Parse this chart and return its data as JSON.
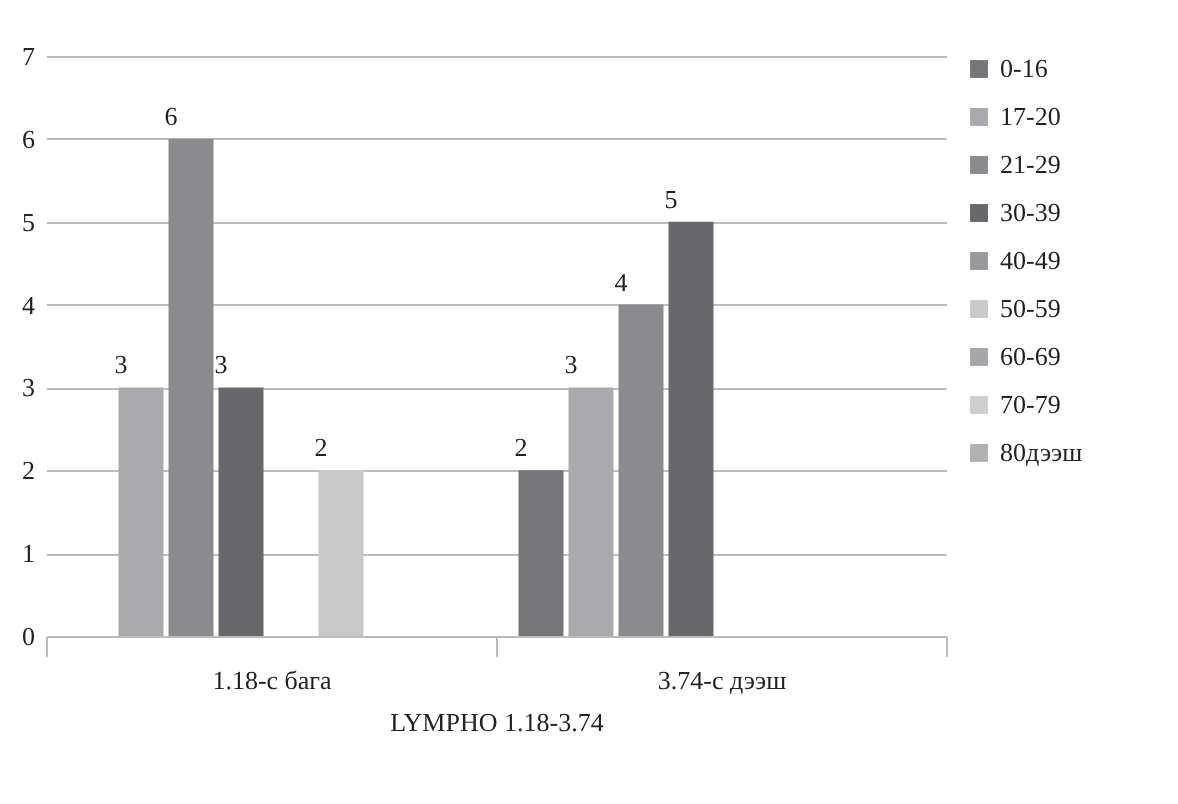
{
  "chart_data": {
    "type": "bar",
    "xlabel": "LYMPHO 1.18-3.74",
    "categories": [
      "1.18-с бага",
      "3.74-с дээш"
    ],
    "series": [
      {
        "name": "0-16",
        "color": "#75767a",
        "values": [
          null,
          2
        ]
      },
      {
        "name": "17-20",
        "color": "#a9aaad",
        "values": [
          3,
          3
        ]
      },
      {
        "name": "21-29",
        "color": "#8a8b8f",
        "values": [
          6,
          4
        ]
      },
      {
        "name": "30-39",
        "color": "#67686b",
        "values": [
          3,
          5
        ]
      },
      {
        "name": "40-49",
        "color": "#98999c",
        "values": [
          null,
          null
        ]
      },
      {
        "name": "50-59",
        "color": "#c8c9cb",
        "values": [
          2,
          null
        ]
      },
      {
        "name": "60-69",
        "color": "#a5a6a9",
        "values": [
          null,
          null
        ]
      },
      {
        "name": "70-79",
        "color": "#cdced0",
        "values": [
          null,
          null
        ]
      },
      {
        "name": "80дээш",
        "color": "#b0b1b3",
        "values": [
          null,
          null
        ]
      }
    ],
    "ylim": [
      0,
      7
    ],
    "yticks": [
      0,
      1,
      2,
      3,
      4,
      5,
      6,
      7
    ],
    "grid": "y",
    "legend": "right",
    "data_labels": true
  }
}
